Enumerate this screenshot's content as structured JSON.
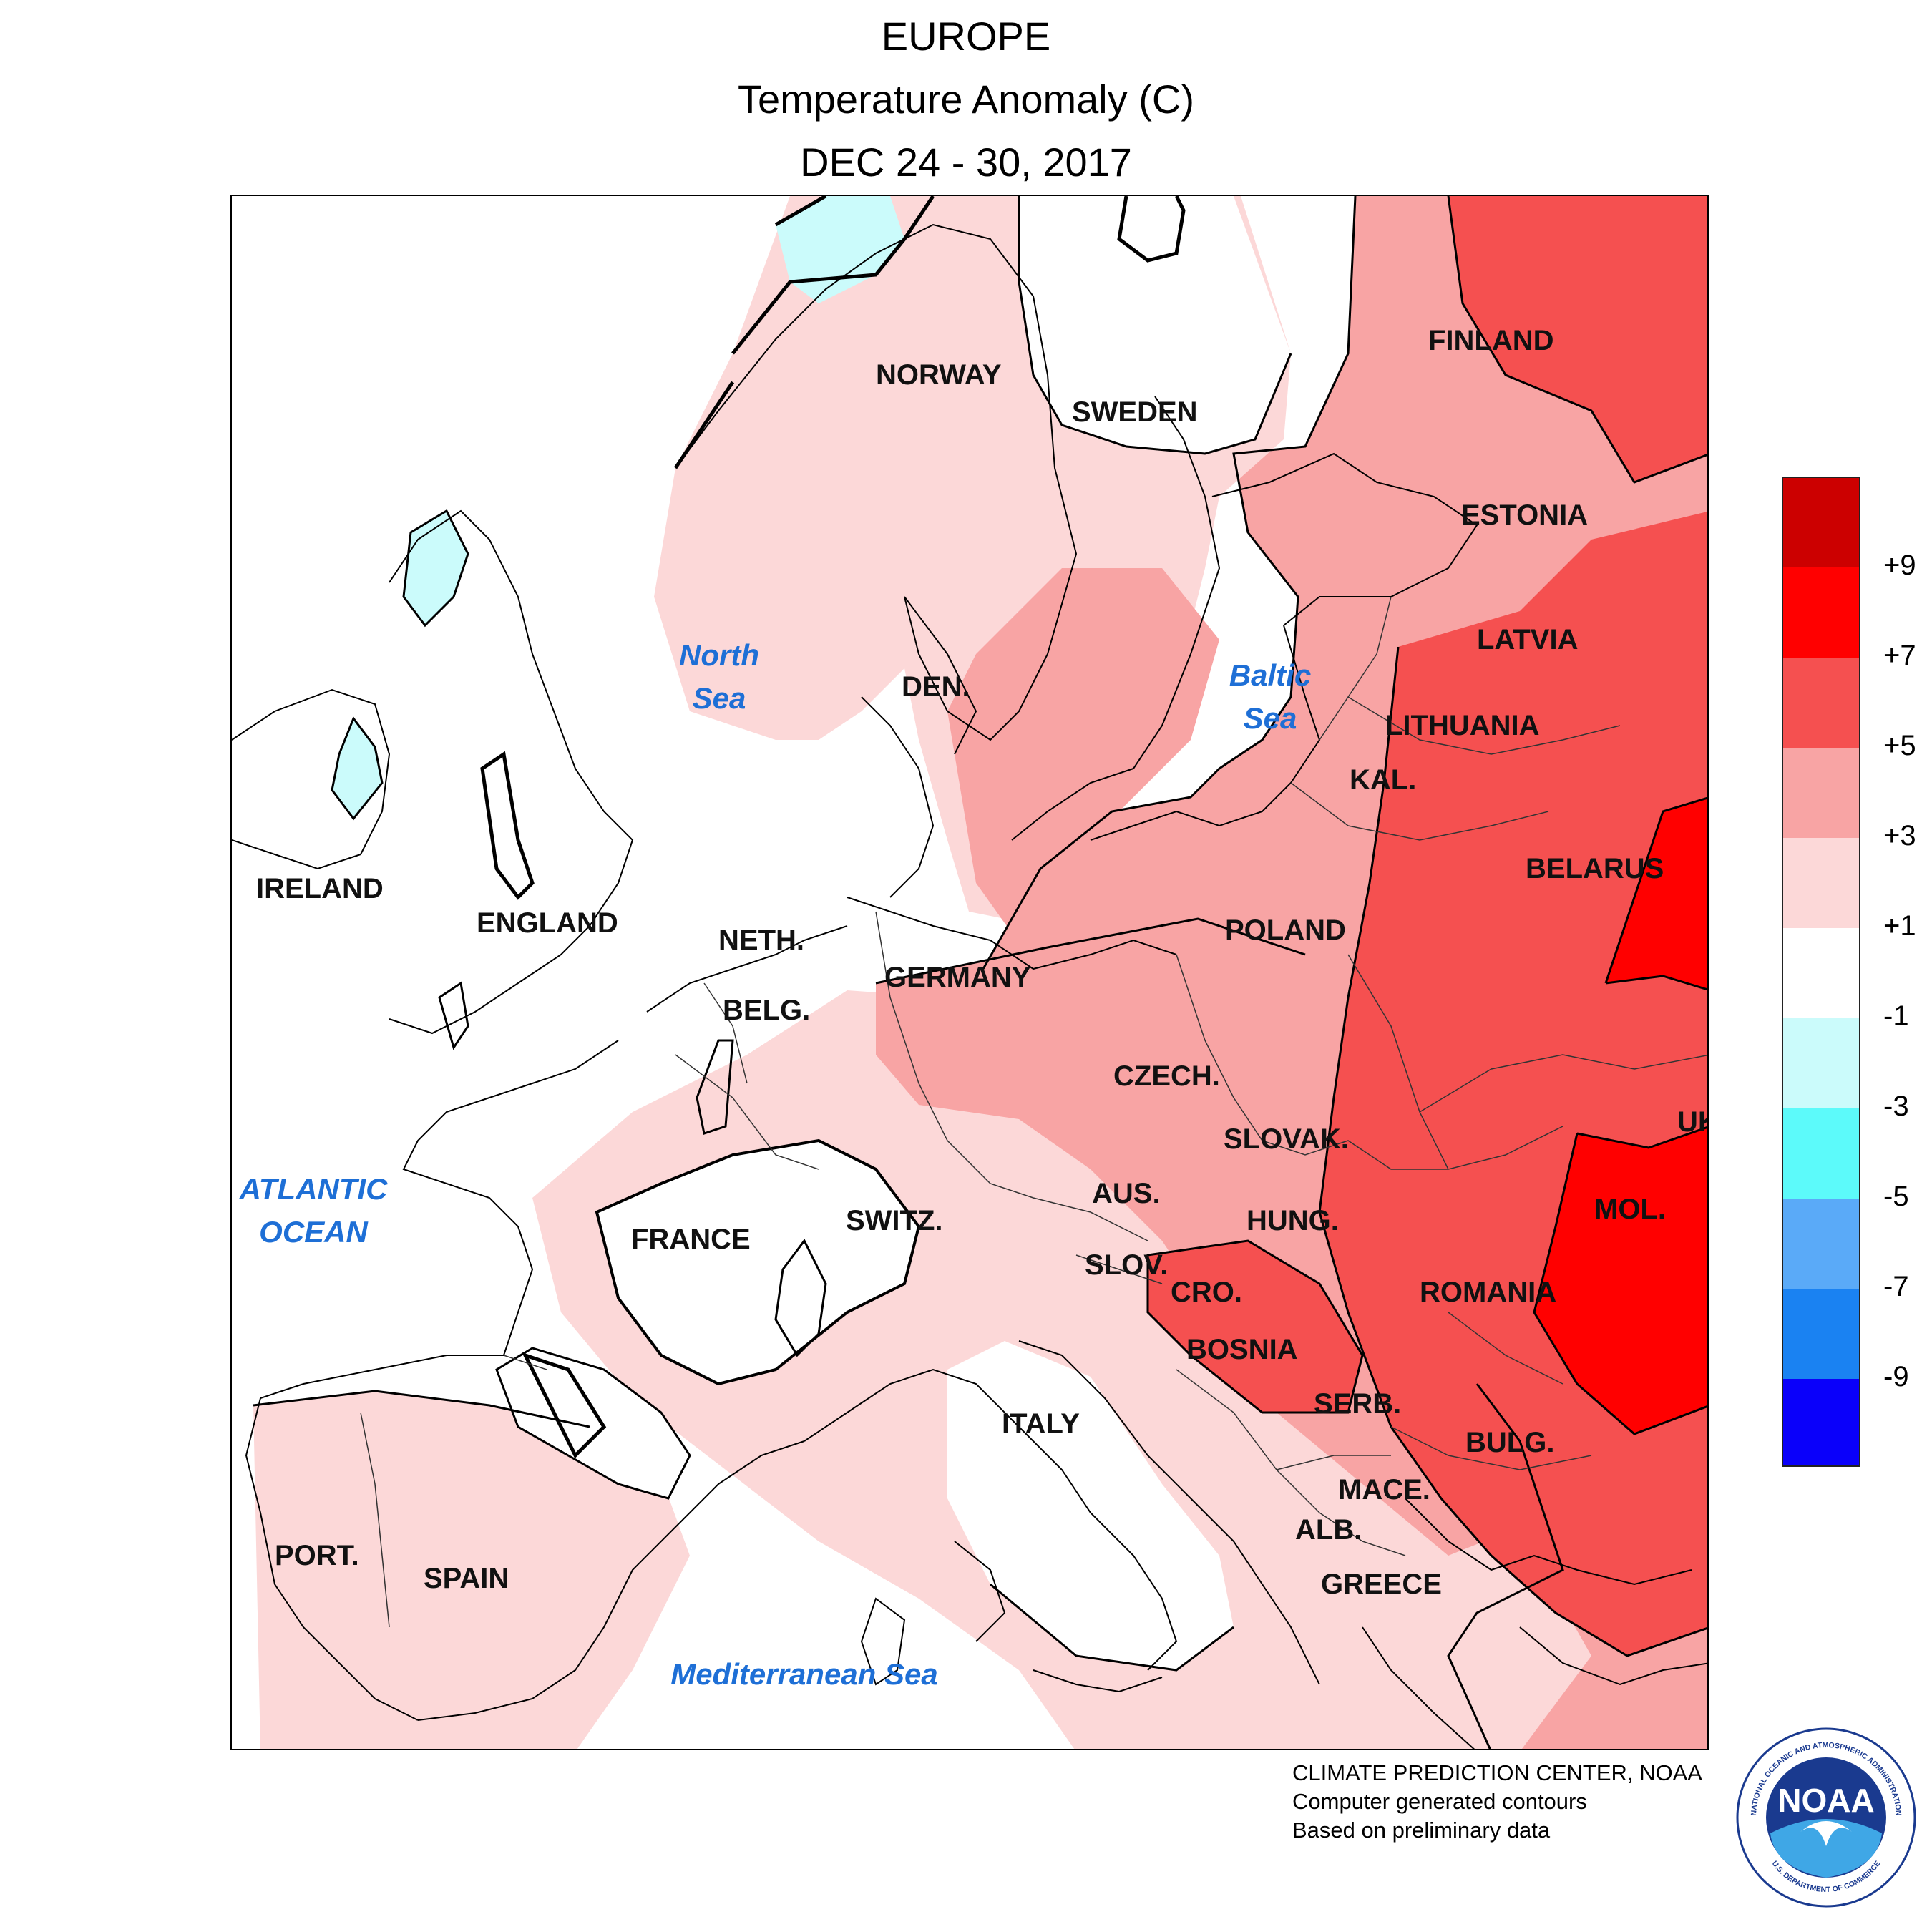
{
  "title": {
    "line1": "EUROPE",
    "line2": "Temperature Anomaly (C)",
    "line3": "DEC 24 - 30, 2017"
  },
  "regions": [
    {
      "label": "FINLAND",
      "anomaly": "+3 to +5"
    },
    {
      "label": "NORWAY",
      "anomaly": "+1 to +3"
    },
    {
      "label": "SWEDEN",
      "anomaly": "-1 to +1"
    },
    {
      "label": "ESTONIA",
      "anomaly": "+5 to +7"
    },
    {
      "label": "LATVIA",
      "anomaly": "+5 to +7"
    },
    {
      "label": "DEN.",
      "anomaly": "+3 to +5"
    },
    {
      "label": "LITHUANIA",
      "anomaly": "+5 to +7"
    },
    {
      "label": "KAL.",
      "anomaly": "+3 to +5"
    },
    {
      "label": "BELARUS",
      "anomaly": "+5 to +7"
    },
    {
      "label": "IRELAND",
      "anomaly": "-1 to +1"
    },
    {
      "label": "ENGLAND",
      "anomaly": "-1 to +1"
    },
    {
      "label": "NETH.",
      "anomaly": "+1 to +3"
    },
    {
      "label": "POLAND",
      "anomaly": "+3 to +5"
    },
    {
      "label": "GERMANY",
      "anomaly": "+3 to +5"
    },
    {
      "label": "BELG.",
      "anomaly": "+1 to +3"
    },
    {
      "label": "CZECH.",
      "anomaly": "+1 to +3"
    },
    {
      "label": "UK",
      "anomaly": "+7 to +9"
    },
    {
      "label": "SLOVAK.",
      "anomaly": "+3 to +5"
    },
    {
      "label": "AUS.",
      "anomaly": "+1 to +3"
    },
    {
      "label": "SWITZ.",
      "anomaly": "-1 to +1"
    },
    {
      "label": "MOL.",
      "anomaly": "+7 to +9"
    },
    {
      "label": "HUNG.",
      "anomaly": "+3 to +5"
    },
    {
      "label": "FRANCE",
      "anomaly": "+1 to +3"
    },
    {
      "label": "SLOV.",
      "anomaly": "+1 to +3"
    },
    {
      "label": "CRO.",
      "anomaly": "+5 to +7"
    },
    {
      "label": "ROMANIA",
      "anomaly": "+5 to +7"
    },
    {
      "label": "BOSNIA",
      "anomaly": "+5 to +7"
    },
    {
      "label": "SERB.",
      "anomaly": "+3 to +5"
    },
    {
      "label": "ITALY",
      "anomaly": "-1 to +1"
    },
    {
      "label": "BULG.",
      "anomaly": "+3 to +5"
    },
    {
      "label": "MACE.",
      "anomaly": "+3 to +5"
    },
    {
      "label": "ALB.",
      "anomaly": "+1 to +3"
    },
    {
      "label": "PORT.",
      "anomaly": "+1 to +3"
    },
    {
      "label": "GREECE",
      "anomaly": "+1 to +3"
    },
    {
      "label": "SPAIN",
      "anomaly": "+1 to +3"
    }
  ],
  "water_bodies": [
    {
      "label": "North\nSea"
    },
    {
      "label": "Baltic\nSea"
    },
    {
      "label": "ATLANTIC\nOCEAN"
    },
    {
      "label": "Mediterranean Sea"
    }
  ],
  "legend": {
    "bins": [
      {
        "range": "> +9",
        "color": "#cc0000"
      },
      {
        "range": "+7 to +9",
        "color": "#ff0000"
      },
      {
        "range": "+5 to +7",
        "color": "#f55050"
      },
      {
        "range": "+3 to +5",
        "color": "#f8a4a4"
      },
      {
        "range": "+1 to +3",
        "color": "#fcd8d8"
      },
      {
        "range": "-1 to +1",
        "color": "#ffffff"
      },
      {
        "range": "-3 to -1",
        "color": "#cbfbfb"
      },
      {
        "range": "-5 to -3",
        "color": "#5cfafa"
      },
      {
        "range": "-7 to -5",
        "color": "#5aaaf8"
      },
      {
        "range": "-9 to -7",
        "color": "#1a82f2"
      },
      {
        "range": "< -9",
        "color": "#0a00fa"
      }
    ],
    "labels": [
      "+9",
      "+7",
      "+5",
      "+3",
      "+1",
      "-1",
      "-3",
      "-5",
      "-7",
      "-9"
    ]
  },
  "credits": {
    "line1": "CLIMATE PREDICTION CENTER, NOAA",
    "line2": "Computer generated contours",
    "line3": "Based on preliminary data"
  },
  "logo": {
    "text": "NOAA",
    "ring_text": "NATIONAL OCEANIC AND ATMOSPHERIC ADMINISTRATION",
    "ring_text_bottom": "U.S. DEPARTMENT OF COMMERCE"
  },
  "colors": {
    "water_label": "#1e6fd6",
    "contour": "#000000"
  }
}
